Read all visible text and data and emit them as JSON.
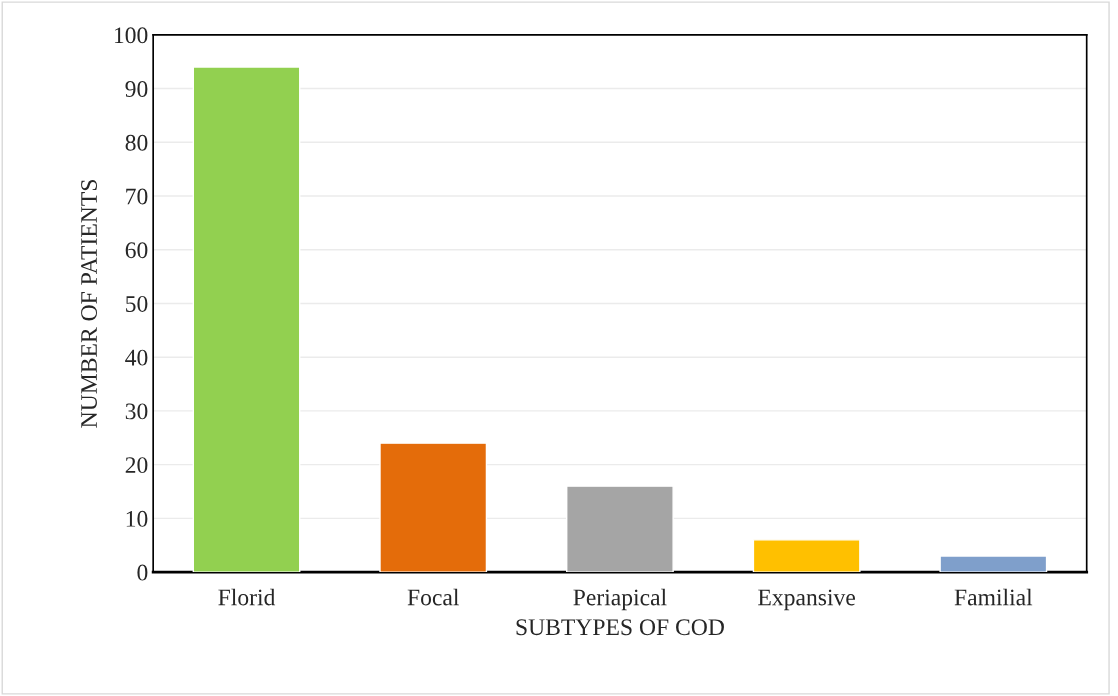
{
  "chart_data": {
    "type": "bar",
    "xlabel": "SUBTYPES OF COD",
    "ylabel": "NUMBER OF PATIENTS",
    "categories": [
      "Florid",
      "Focal",
      "Periapical",
      "Expansive",
      "Familial"
    ],
    "values": [
      94,
      24,
      16,
      6,
      3
    ],
    "colors": [
      "#92d050",
      "#e46c0a",
      "#a5a5a5",
      "#ffc000",
      "#7f9fcb"
    ],
    "ylim": [
      0,
      100
    ],
    "yticks": [
      0,
      10,
      20,
      30,
      40,
      50,
      60,
      70,
      80,
      90,
      100
    ],
    "grid": "y",
    "legend": false
  }
}
